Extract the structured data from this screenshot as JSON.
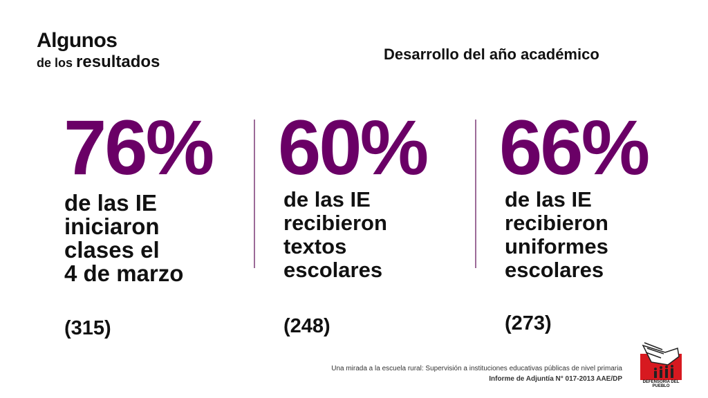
{
  "header": {
    "title_line1": "Algunos",
    "title_small": "de los",
    "title_big": "resultados",
    "subtitle": "Desarrollo del año académico"
  },
  "stats": [
    {
      "percent": "76%",
      "desc": [
        "de las IE",
        "iniciaron",
        "clases el",
        "4 de marzo"
      ],
      "count": "(315)"
    },
    {
      "percent": "60%",
      "desc": [
        "de las IE",
        "recibieron",
        "textos",
        "escolares"
      ],
      "count": "(248)"
    },
    {
      "percent": "66%",
      "desc": [
        "de las IE",
        "recibieron",
        "uniformes",
        "escolares"
      ],
      "count": "(273)"
    }
  ],
  "footer": {
    "line1": "Una mirada a la escuela rural: Supervisión a instituciones educativas públicas de nivel primaria",
    "line2": "Informe de Adjuntía N° 017-2013 AAE/DP"
  },
  "logo": {
    "text": "DEFENSORIA DEL PUEBLO"
  },
  "colors": {
    "accent": "#6a0066",
    "logo_red": "#d71920"
  }
}
